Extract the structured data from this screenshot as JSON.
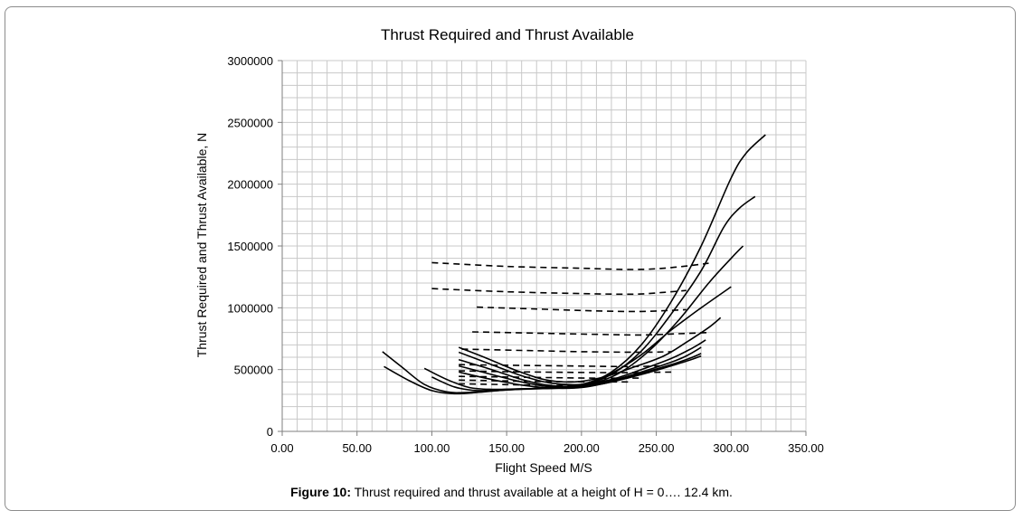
{
  "caption": {
    "label": "Figure 10:",
    "text": "Thrust required and thrust available at a height of H = 0…. 12.4 km."
  },
  "chart_data": {
    "type": "line",
    "title": "Thrust Required and Thrust Available",
    "xlabel": "Flight Speed M/S",
    "ylabel": "Thrust Required and Thrust Available, N",
    "xlim": [
      0,
      350
    ],
    "ylim": [
      0,
      3000000
    ],
    "x_ticks": [
      "0.00",
      "50.00",
      "100.00",
      "150.00",
      "200.00",
      "250.00",
      "300.00",
      "350.00"
    ],
    "y_ticks": [
      "0",
      "500000",
      "1000000",
      "1500000",
      "2000000",
      "2500000",
      "3000000"
    ],
    "grid": true,
    "thrust_required": [
      [
        [
          67,
          645000
        ],
        [
          80,
          520000
        ],
        [
          95,
          380000
        ],
        [
          110,
          320000
        ],
        [
          125,
          315000
        ],
        [
          150,
          335000
        ],
        [
          180,
          355000
        ],
        [
          200,
          375000
        ],
        [
          220,
          480000
        ],
        [
          240,
          700000
        ],
        [
          260,
          1050000
        ],
        [
          280,
          1500000
        ],
        [
          300,
          2050000
        ],
        [
          310,
          2250000
        ],
        [
          323,
          2400000
        ]
      ],
      [
        [
          68,
          525000
        ],
        [
          85,
          410000
        ],
        [
          100,
          330000
        ],
        [
          115,
          305000
        ],
        [
          130,
          315000
        ],
        [
          150,
          335000
        ],
        [
          180,
          350000
        ],
        [
          200,
          370000
        ],
        [
          220,
          460000
        ],
        [
          240,
          650000
        ],
        [
          260,
          950000
        ],
        [
          280,
          1300000
        ],
        [
          295,
          1650000
        ],
        [
          305,
          1800000
        ],
        [
          316,
          1900000
        ]
      ],
      [
        [
          95,
          510000
        ],
        [
          110,
          420000
        ],
        [
          125,
          355000
        ],
        [
          140,
          340000
        ],
        [
          160,
          345000
        ],
        [
          185,
          350000
        ],
        [
          205,
          380000
        ],
        [
          225,
          470000
        ],
        [
          245,
          650000
        ],
        [
          265,
          900000
        ],
        [
          285,
          1200000
        ],
        [
          300,
          1400000
        ],
        [
          308,
          1500000
        ]
      ],
      [
        [
          100,
          440000
        ],
        [
          115,
          360000
        ],
        [
          130,
          330000
        ],
        [
          150,
          340000
        ],
        [
          175,
          350000
        ],
        [
          200,
          380000
        ],
        [
          220,
          470000
        ],
        [
          240,
          620000
        ],
        [
          260,
          820000
        ],
        [
          280,
          1000000
        ],
        [
          300,
          1170000
        ]
      ],
      [
        [
          118,
          680000
        ],
        [
          135,
          600000
        ],
        [
          155,
          500000
        ],
        [
          175,
          420000
        ],
        [
          195,
          400000
        ],
        [
          215,
          440000
        ],
        [
          235,
          520000
        ],
        [
          255,
          610000
        ],
        [
          270,
          720000
        ],
        [
          285,
          840000
        ],
        [
          293,
          920000
        ]
      ],
      [
        [
          118,
          640000
        ],
        [
          140,
          540000
        ],
        [
          160,
          450000
        ],
        [
          180,
          390000
        ],
        [
          200,
          380000
        ],
        [
          220,
          420000
        ],
        [
          240,
          500000
        ],
        [
          260,
          590000
        ],
        [
          275,
          680000
        ],
        [
          283,
          740000
        ]
      ],
      [
        [
          118,
          580000
        ],
        [
          140,
          500000
        ],
        [
          160,
          420000
        ],
        [
          180,
          370000
        ],
        [
          200,
          370000
        ],
        [
          220,
          410000
        ],
        [
          240,
          480000
        ],
        [
          260,
          560000
        ],
        [
          270,
          610000
        ],
        [
          280,
          680000
        ]
      ],
      [
        [
          118,
          530000
        ],
        [
          140,
          460000
        ],
        [
          160,
          400000
        ],
        [
          180,
          360000
        ],
        [
          200,
          360000
        ],
        [
          220,
          400000
        ],
        [
          240,
          470000
        ],
        [
          260,
          540000
        ],
        [
          272,
          590000
        ],
        [
          280,
          630000
        ]
      ],
      [
        [
          118,
          480000
        ],
        [
          140,
          420000
        ],
        [
          160,
          375000
        ],
        [
          180,
          350000
        ],
        [
          200,
          355000
        ],
        [
          220,
          400000
        ],
        [
          240,
          460000
        ],
        [
          260,
          530000
        ],
        [
          272,
          575000
        ],
        [
          280,
          610000
        ]
      ]
    ],
    "thrust_available": [
      [
        [
          100,
          1365000
        ],
        [
          150,
          1335000
        ],
        [
          200,
          1320000
        ],
        [
          235,
          1310000
        ],
        [
          260,
          1325000
        ],
        [
          285,
          1360000
        ]
      ],
      [
        [
          100,
          1155000
        ],
        [
          150,
          1130000
        ],
        [
          200,
          1115000
        ],
        [
          235,
          1110000
        ],
        [
          255,
          1125000
        ],
        [
          270,
          1140000
        ]
      ],
      [
        [
          130,
          1005000
        ],
        [
          170,
          990000
        ],
        [
          210,
          975000
        ],
        [
          240,
          970000
        ],
        [
          270,
          985000
        ]
      ],
      [
        [
          127,
          805000
        ],
        [
          170,
          795000
        ],
        [
          210,
          785000
        ],
        [
          240,
          780000
        ],
        [
          265,
          790000
        ],
        [
          285,
          800000
        ]
      ],
      [
        [
          120,
          665000
        ],
        [
          160,
          655000
        ],
        [
          200,
          645000
        ],
        [
          240,
          640000
        ],
        [
          260,
          645000
        ]
      ],
      [
        [
          118,
          540000
        ],
        [
          150,
          535000
        ],
        [
          190,
          530000
        ],
        [
          230,
          525000
        ],
        [
          255,
          530000
        ]
      ],
      [
        [
          118,
          490000
        ],
        [
          150,
          483000
        ],
        [
          190,
          478000
        ],
        [
          230,
          475000
        ],
        [
          260,
          480000
        ]
      ],
      [
        [
          118,
          445000
        ],
        [
          150,
          440000
        ],
        [
          190,
          433000
        ],
        [
          220,
          430000
        ],
        [
          240,
          432000
        ]
      ],
      [
        [
          118,
          415000
        ],
        [
          150,
          408000
        ],
        [
          185,
          402000
        ],
        [
          210,
          400000
        ],
        [
          232,
          400000
        ]
      ],
      [
        [
          118,
          385000
        ],
        [
          150,
          378000
        ],
        [
          180,
          372000
        ],
        [
          200,
          372000
        ]
      ]
    ]
  }
}
